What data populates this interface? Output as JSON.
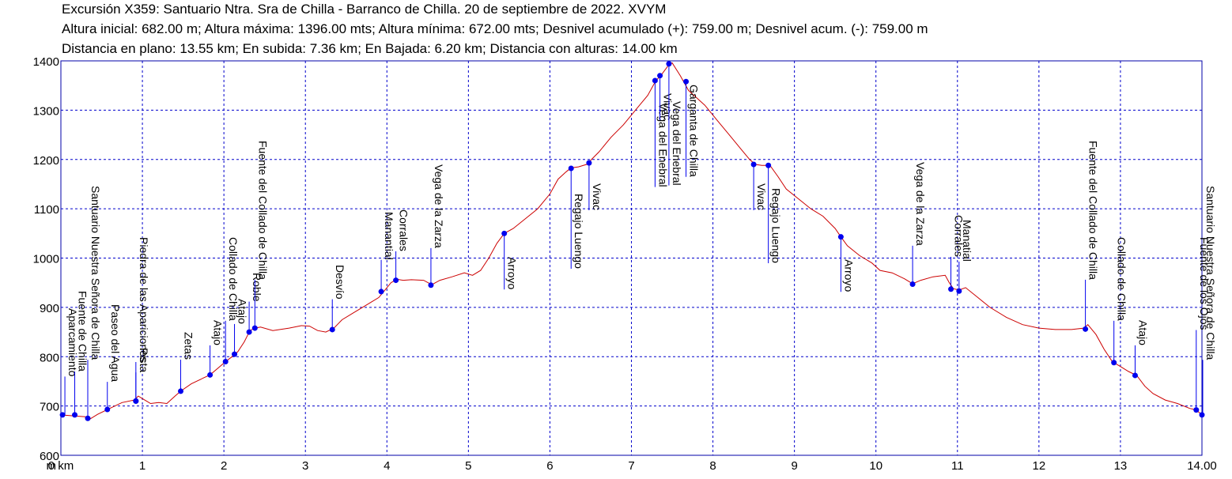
{
  "header": {
    "line1": "Excursión X359: Santuario Ntra. Sra de Chilla - Barranco de Chilla. 20 de septiembre de 2022. XVYM",
    "line2": "Altura inicial: 682.00 m; Altura máxima: 1396.00 mts; Altura mínima: 672.00 mts; Desnivel acumulado (+): 759.00 m; Desnivel acum. (-): 759.00 m",
    "line3": "Distancia en plano: 13.55 km; En subida: 7.36 km; En Bajada: 6.20 km; Distancia con alturas: 14.00 km"
  },
  "colors": {
    "profile": "#cc0000",
    "grid": "#0000cc",
    "axis": "#0000aa",
    "waypoint": "#0000ee"
  },
  "chart_data": {
    "type": "line",
    "xlim": [
      0,
      14
    ],
    "ylim": [
      600,
      1400
    ],
    "x_unit_label": "km",
    "y_unit_label": "m",
    "x_ticks": [
      0,
      1,
      2,
      3,
      4,
      5,
      6,
      7,
      8,
      9,
      10,
      11,
      12,
      13,
      14
    ],
    "x_tick_labels": [
      "0 km",
      "1",
      "2",
      "3",
      "4",
      "5",
      "6",
      "7",
      "8",
      "9",
      "10",
      "11",
      "12",
      "13",
      "14.00"
    ],
    "y_ticks": [
      600,
      700,
      800,
      900,
      1000,
      1100,
      1200,
      1300,
      1400
    ],
    "grid": true,
    "profile": [
      [
        0,
        682
      ],
      [
        0.15,
        680
      ],
      [
        0.3,
        678
      ],
      [
        0.35,
        673
      ],
      [
        0.45,
        683
      ],
      [
        0.6,
        695
      ],
      [
        0.75,
        707
      ],
      [
        0.9,
        712
      ],
      [
        0.95,
        720
      ],
      [
        1.0,
        715
      ],
      [
        1.1,
        705
      ],
      [
        1.2,
        707
      ],
      [
        1.3,
        705
      ],
      [
        1.4,
        720
      ],
      [
        1.47,
        730
      ],
      [
        1.6,
        745
      ],
      [
        1.75,
        757
      ],
      [
        1.83,
        763
      ],
      [
        1.95,
        780
      ],
      [
        2.02,
        790
      ],
      [
        2.1,
        800
      ],
      [
        2.17,
        810
      ],
      [
        2.25,
        830
      ],
      [
        2.32,
        853
      ],
      [
        2.38,
        858
      ],
      [
        2.45,
        860
      ],
      [
        2.6,
        853
      ],
      [
        2.8,
        858
      ],
      [
        2.95,
        863
      ],
      [
        3.05,
        862
      ],
      [
        3.15,
        853
      ],
      [
        3.25,
        850
      ],
      [
        3.35,
        858
      ],
      [
        3.45,
        875
      ],
      [
        3.6,
        890
      ],
      [
        3.75,
        905
      ],
      [
        3.9,
        920
      ],
      [
        3.96,
        932
      ],
      [
        4.05,
        950
      ],
      [
        4.12,
        957
      ],
      [
        4.2,
        955
      ],
      [
        4.3,
        956
      ],
      [
        4.45,
        955
      ],
      [
        4.55,
        946
      ],
      [
        4.65,
        955
      ],
      [
        4.8,
        962
      ],
      [
        4.95,
        970
      ],
      [
        5.05,
        965
      ],
      [
        5.15,
        975
      ],
      [
        5.25,
        1000
      ],
      [
        5.35,
        1030
      ],
      [
        5.44,
        1050
      ],
      [
        5.55,
        1060
      ],
      [
        5.7,
        1080
      ],
      [
        5.85,
        1100
      ],
      [
        6.0,
        1130
      ],
      [
        6.1,
        1160
      ],
      [
        6.2,
        1175
      ],
      [
        6.26,
        1183
      ],
      [
        6.35,
        1185
      ],
      [
        6.45,
        1190
      ],
      [
        6.48,
        1195
      ],
      [
        6.6,
        1215
      ],
      [
        6.75,
        1245
      ],
      [
        6.9,
        1270
      ],
      [
        7.0,
        1290
      ],
      [
        7.1,
        1310
      ],
      [
        7.2,
        1330
      ],
      [
        7.3,
        1360
      ],
      [
        7.36,
        1370
      ],
      [
        7.45,
        1390
      ],
      [
        7.5,
        1396
      ],
      [
        7.6,
        1370
      ],
      [
        7.7,
        1340
      ],
      [
        7.8,
        1325
      ],
      [
        7.9,
        1310
      ],
      [
        8.05,
        1280
      ],
      [
        8.2,
        1250
      ],
      [
        8.35,
        1220
      ],
      [
        8.45,
        1200
      ],
      [
        8.52,
        1190
      ],
      [
        8.6,
        1188
      ],
      [
        8.7,
        1188
      ],
      [
        8.8,
        1165
      ],
      [
        8.9,
        1140
      ],
      [
        9.05,
        1120
      ],
      [
        9.2,
        1100
      ],
      [
        9.35,
        1085
      ],
      [
        9.5,
        1060
      ],
      [
        9.57,
        1043
      ],
      [
        9.65,
        1025
      ],
      [
        9.8,
        1005
      ],
      [
        9.95,
        990
      ],
      [
        10.05,
        975
      ],
      [
        10.2,
        970
      ],
      [
        10.35,
        958
      ],
      [
        10.45,
        948
      ],
      [
        10.55,
        955
      ],
      [
        10.7,
        962
      ],
      [
        10.85,
        965
      ],
      [
        10.9,
        950
      ],
      [
        10.95,
        938
      ],
      [
        11.02,
        935
      ],
      [
        11.1,
        940
      ],
      [
        11.25,
        920
      ],
      [
        11.4,
        900
      ],
      [
        11.6,
        880
      ],
      [
        11.8,
        865
      ],
      [
        12.0,
        858
      ],
      [
        12.2,
        855
      ],
      [
        12.4,
        855
      ],
      [
        12.55,
        858
      ],
      [
        12.6,
        865
      ],
      [
        12.7,
        845
      ],
      [
        12.8,
        815
      ],
      [
        12.9,
        790
      ],
      [
        13.0,
        780
      ],
      [
        13.1,
        770
      ],
      [
        13.2,
        762
      ],
      [
        13.3,
        740
      ],
      [
        13.4,
        725
      ],
      [
        13.55,
        712
      ],
      [
        13.7,
        705
      ],
      [
        13.85,
        695
      ],
      [
        13.93,
        692
      ],
      [
        14.0,
        682
      ]
    ],
    "waypoints": [
      {
        "x": 0.02,
        "y": 682,
        "label": "Aparcamiento"
      },
      {
        "x": 0.17,
        "y": 682,
        "label": "Fuente de Chilla"
      },
      {
        "x": 0.33,
        "y": 675,
        "label": "Santuario Nuestra Señora de Chilla"
      },
      {
        "x": 0.57,
        "y": 693,
        "label": "Paseo del Agua"
      },
      {
        "x": 0.92,
        "y": 710,
        "label": "Piedra de las Apariciones"
      },
      {
        "x": 0.92,
        "y": 710,
        "label": "Pista"
      },
      {
        "x": 1.47,
        "y": 730,
        "label": "Zetas"
      },
      {
        "x": 1.83,
        "y": 763,
        "label": "Atajo"
      },
      {
        "x": 2.02,
        "y": 790,
        "label": "Collado de Chilla"
      },
      {
        "x": 2.13,
        "y": 805,
        "label": "Atajo"
      },
      {
        "x": 2.31,
        "y": 850,
        "label": "Roble"
      },
      {
        "x": 2.38,
        "y": 858,
        "label": "Fuente del Collado de Chilla"
      },
      {
        "x": 3.33,
        "y": 855,
        "label": "Desvío"
      },
      {
        "x": 3.93,
        "y": 932,
        "label": "Manantial"
      },
      {
        "x": 4.11,
        "y": 955,
        "label": "Corrales"
      },
      {
        "x": 4.54,
        "y": 945,
        "label": "Vega de la Zarza"
      },
      {
        "x": 5.44,
        "y": 1050,
        "label": "Arroyo"
      },
      {
        "x": 6.26,
        "y": 1182,
        "label": "Regajo Luengo"
      },
      {
        "x": 6.48,
        "y": 1193,
        "label": "Vivac"
      },
      {
        "x": 7.29,
        "y": 1360,
        "label": "Vega del Enebral"
      },
      {
        "x": 7.35,
        "y": 1370,
        "label": "Vivac"
      },
      {
        "x": 7.46,
        "y": 1394,
        "label": "Vega del Enebral"
      },
      {
        "x": 7.67,
        "y": 1358,
        "label": "Garganta de Chilla"
      },
      {
        "x": 8.5,
        "y": 1190,
        "label": "Vivac"
      },
      {
        "x": 8.68,
        "y": 1188,
        "label": "Regajo Luengo"
      },
      {
        "x": 9.57,
        "y": 1043,
        "label": "Arroyo"
      },
      {
        "x": 10.45,
        "y": 947,
        "label": "Vega de la Zarza"
      },
      {
        "x": 10.92,
        "y": 937,
        "label": "Corrales"
      },
      {
        "x": 11.02,
        "y": 933,
        "label": "Manatial"
      },
      {
        "x": 12.57,
        "y": 856,
        "label": "Fuente del Collado de Chilla"
      },
      {
        "x": 12.92,
        "y": 788,
        "label": "Collado de Chilla"
      },
      {
        "x": 13.18,
        "y": 762,
        "label": "Atajo"
      },
      {
        "x": 13.93,
        "y": 692,
        "label": "Fuente de los Ojos"
      },
      {
        "x": 14.0,
        "y": 682,
        "label": "Santuario Nuestra Señora de Chilla"
      }
    ]
  }
}
